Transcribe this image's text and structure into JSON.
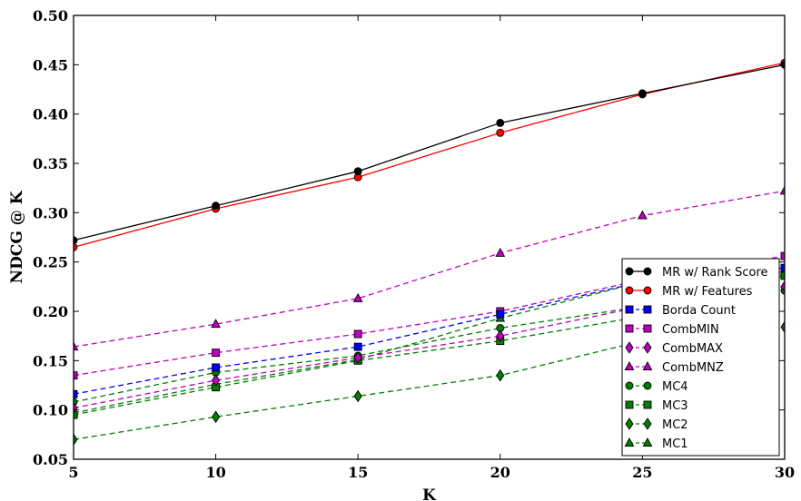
{
  "chart_data": {
    "type": "line",
    "title": "",
    "xlabel": "K",
    "ylabel": "NDCG @ K",
    "xlim": [
      5,
      30
    ],
    "ylim": [
      0.05,
      0.5
    ],
    "xticks": [
      5,
      10,
      15,
      20,
      25,
      30
    ],
    "yticks": [
      "0.05",
      "0.10",
      "0.15",
      "0.20",
      "0.25",
      "0.30",
      "0.35",
      "0.40",
      "0.45",
      "0.50"
    ],
    "x": [
      5,
      10,
      15,
      20,
      25,
      30
    ],
    "grid": false,
    "legend_position": "bottom-right",
    "series": [
      {
        "name": "MR w/ Rank Score",
        "color": "#000000",
        "marker": "circle",
        "dashed": false,
        "values": [
          0.272,
          0.307,
          0.342,
          0.391,
          0.421,
          0.45
        ]
      },
      {
        "name": "MR w/ Features",
        "color": "#ff0000",
        "marker": "circle",
        "dashed": false,
        "values": [
          0.265,
          0.304,
          0.336,
          0.381,
          0.42,
          0.452
        ]
      },
      {
        "name": "Borda Count",
        "color": "#0000ff",
        "marker": "square",
        "dashed": true,
        "values": [
          0.116,
          0.143,
          0.164,
          0.197,
          0.23,
          0.244
        ]
      },
      {
        "name": "CombMIN",
        "color": "#bf00bf",
        "marker": "square",
        "dashed": true,
        "values": [
          0.135,
          0.158,
          0.177,
          0.2,
          0.232,
          0.256
        ]
      },
      {
        "name": "CombMAX",
        "color": "#bf00bf",
        "marker": "diamond",
        "dashed": true,
        "values": [
          0.102,
          0.13,
          0.153,
          0.175,
          0.205,
          0.225
        ]
      },
      {
        "name": "CombMNZ",
        "color": "#bf00bf",
        "marker": "triangle",
        "dashed": true,
        "values": [
          0.164,
          0.187,
          0.213,
          0.259,
          0.297,
          0.322
        ]
      },
      {
        "name": "MC4",
        "color": "#007f00",
        "marker": "circle",
        "dashed": true,
        "values": [
          0.108,
          0.138,
          0.155,
          0.183,
          0.205,
          0.221
        ]
      },
      {
        "name": "MC3",
        "color": "#007f00",
        "marker": "square",
        "dashed": true,
        "values": [
          0.095,
          0.123,
          0.15,
          0.17,
          0.195,
          0.236
        ]
      },
      {
        "name": "MC2",
        "color": "#007f00",
        "marker": "diamond",
        "dashed": true,
        "values": [
          0.07,
          0.093,
          0.114,
          0.135,
          0.17,
          0.184
        ]
      },
      {
        "name": "MC1",
        "color": "#007f00",
        "marker": "triangle",
        "dashed": true,
        "values": [
          0.097,
          0.126,
          0.151,
          0.193,
          0.23,
          0.24
        ]
      }
    ]
  }
}
